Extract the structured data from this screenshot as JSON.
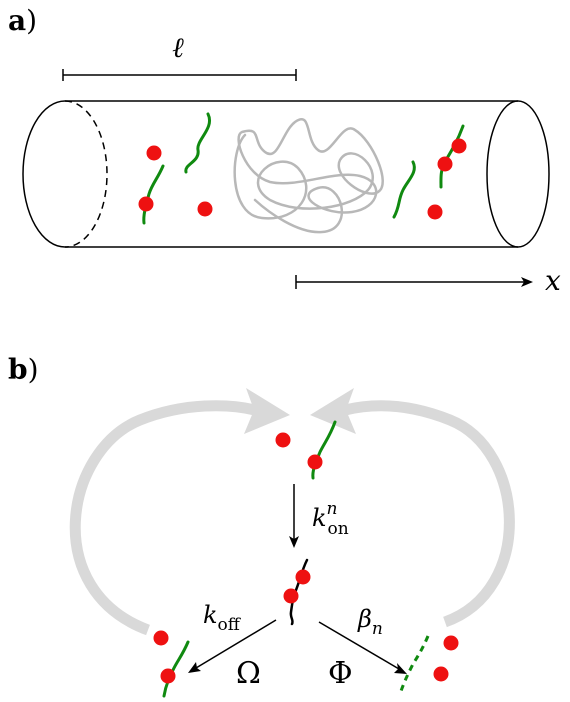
{
  "panel_a": {
    "label_letter": "a",
    "label_paren": ")",
    "length_symbol": "ℓ",
    "axis_symbol": "x"
  },
  "panel_b": {
    "label_letter": "b",
    "label_paren": ")",
    "k_on": {
      "base": "k",
      "superscript": "n",
      "subscript": "on"
    },
    "k_off": {
      "base": "k",
      "subscript": "off"
    },
    "beta": {
      "base": "β",
      "subscript": "n"
    },
    "omega": "Ω",
    "phi": "Φ"
  },
  "colors": {
    "particle_red": "#ee1111",
    "strand_green": "#108a10",
    "polymer_gray": "#b8b8b8",
    "cycle_arrow_gray": "#d9d9d9",
    "line_black": "#000000"
  }
}
